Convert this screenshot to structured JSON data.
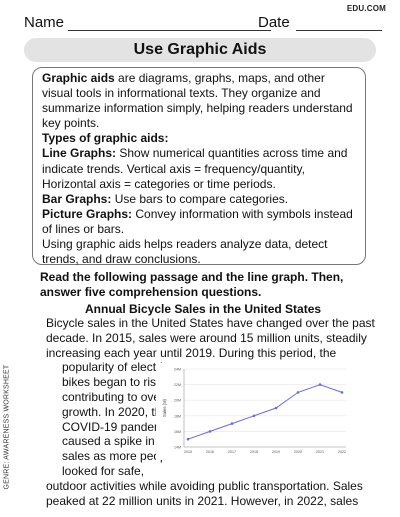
{
  "header": {
    "brand": "EDU.COM",
    "name_label": "Name",
    "date_label": "Date"
  },
  "title": "Use Graphic Aids",
  "info": {
    "intro_term": "Graphic aids",
    "intro_rest": " are diagrams, graphs, maps, and other visual tools in informational texts. They organize and summarize information simply, helping readers understand key points.",
    "types_heading": "Types of graphic aids:",
    "line_term": "Line Graphs:",
    "line_rest": " Show numerical quantities across time and indicate trends. Vertical axis = frequency/quantity, Horizontal axis = categories or time periods.",
    "bar_term": "Bar Graphs:",
    "bar_rest": " Use bars to compare categories.",
    "picture_term": "Picture Graphs:",
    "picture_rest": " Convey information with symbols instead of lines or bars.",
    "closing": "Using graphic aids helps readers analyze data, detect trends, and draw conclusions."
  },
  "instruction": "Read the following passage and the line graph. Then, answer five comprehension questions.",
  "passage": {
    "title": "Annual Bicycle Sales in the United States",
    "lines_full": [
      "Bicycle sales in the United States have changed over the past",
      "decade. In 2015, sales were around 15 million units, steadily",
      "increasing each year until 2019. During this period, the"
    ],
    "lines_narrow": [
      "popularity of electric",
      "bikes began to rise,",
      "contributing to overall",
      "growth. In 2020, the",
      "COVID-19 pandemic",
      "caused a spike in",
      "sales as more people",
      "looked for safe,"
    ],
    "lines_after": [
      "outdoor activities while avoiding public transportation. Sales",
      "peaked at 22 million units in 2021. However, in 2022, sales"
    ]
  },
  "side_label": "GENRE: AWARENESS WORKSHEET",
  "chart_data": {
    "type": "line",
    "title": "",
    "xlabel": "",
    "ylabel": "Sales (M)",
    "x": [
      "2015",
      "2016",
      "2017",
      "2018",
      "2019",
      "2020",
      "2021",
      "2022"
    ],
    "values": [
      15,
      16,
      17,
      18,
      19,
      21,
      22,
      21
    ],
    "ylim": [
      14,
      24
    ],
    "yticks": [
      "14M",
      "16M",
      "18M",
      "20M",
      "22M",
      "24M"
    ],
    "ytick_values": [
      14,
      16,
      18,
      20,
      22,
      24
    ],
    "grid": true,
    "color": "#6b6bd6"
  }
}
